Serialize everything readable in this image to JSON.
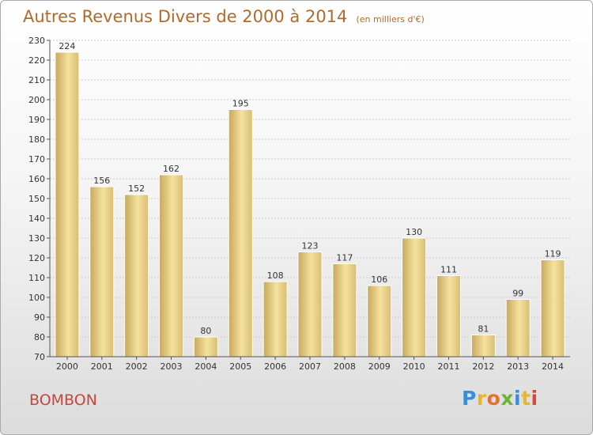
{
  "title": "Autres Revenus Divers de 2000 à 2014",
  "subtitle": "(en milliers d'€)",
  "commune": "BOMBON",
  "logo": {
    "letters": [
      {
        "char": "P",
        "color": "#3a8ed8"
      },
      {
        "char": "r",
        "color": "#e8b52c"
      },
      {
        "char": "o",
        "color": "#e8702a"
      },
      {
        "char": "x",
        "color": "#6bb33a"
      },
      {
        "char": "i",
        "color": "#3a8ed8"
      },
      {
        "char": "t",
        "color": "#e8b52c"
      },
      {
        "char": "i",
        "color": "#d9453a"
      }
    ]
  },
  "colors": {
    "title": "#b06a2a",
    "commune": "#c8453d",
    "bar_light": "#f5e29e",
    "bar_dark": "#c8a85e",
    "grid": "#cccccc",
    "axis": "#555555"
  },
  "chart_data": {
    "type": "bar",
    "title": "Autres Revenus Divers de 2000 à 2014",
    "subtitle": "(en milliers d'€)",
    "categories": [
      "2000",
      "2001",
      "2002",
      "2003",
      "2004",
      "2005",
      "2006",
      "2007",
      "2008",
      "2009",
      "2010",
      "2011",
      "2012",
      "2013",
      "2014"
    ],
    "values": [
      224,
      156,
      152,
      162,
      80,
      195,
      108,
      123,
      117,
      106,
      130,
      111,
      81,
      99,
      119
    ],
    "ylim": [
      70,
      230
    ],
    "yticks": [
      70,
      80,
      90,
      100,
      110,
      120,
      130,
      140,
      150,
      160,
      170,
      180,
      190,
      200,
      210,
      220,
      230
    ],
    "grid": true,
    "data_labels": true
  }
}
